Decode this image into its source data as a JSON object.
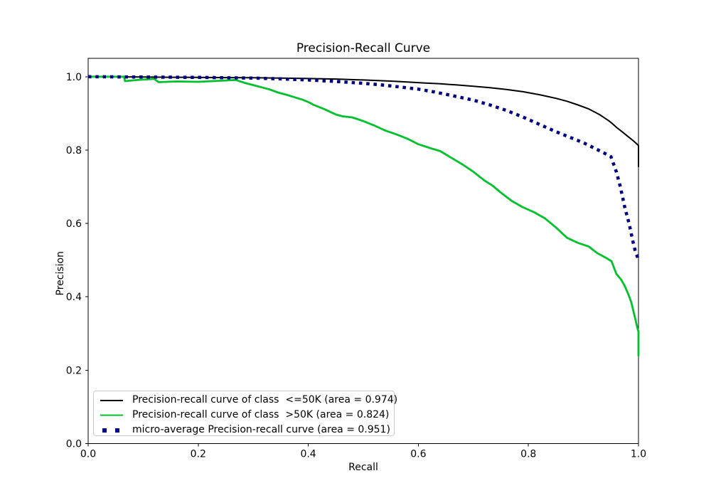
{
  "title": "Precision-Recall Curve",
  "axes": {
    "xlabel": "Recall",
    "ylabel": "Precision"
  },
  "legend": {
    "items": [
      {
        "label": "Precision-recall curve of class  <=50K (area = 0.974)"
      },
      {
        "label": "Precision-recall curve of class  >50K (area = 0.824)"
      },
      {
        "label": "micro-average Precision-recall curve (area = 0.951)"
      }
    ]
  },
  "chart_data": {
    "type": "line",
    "title": "Precision-Recall Curve",
    "xlabel": "Recall",
    "ylabel": "Precision",
    "xlim": [
      0.0,
      1.0
    ],
    "ylim": [
      0.0,
      1.05
    ],
    "x_ticks": [
      0.0,
      0.2,
      0.4,
      0.6,
      0.8,
      1.0
    ],
    "y_ticks": [
      0.0,
      0.2,
      0.4,
      0.6,
      0.8,
      1.0
    ],
    "grid": false,
    "legend_position": "lower left",
    "background": "#ffffff",
    "series": [
      {
        "name": "Precision-recall curve of class  <=50K (area = 0.974)",
        "area": 0.974,
        "color": "#000000",
        "linestyle": "solid",
        "linewidth": 2,
        "points": [
          [
            0.0,
            1.0
          ],
          [
            0.05,
            0.9995
          ],
          [
            0.1,
            0.999
          ],
          [
            0.15,
            0.9985
          ],
          [
            0.2,
            0.998
          ],
          [
            0.25,
            0.9975
          ],
          [
            0.3,
            0.997
          ],
          [
            0.35,
            0.996
          ],
          [
            0.4,
            0.995
          ],
          [
            0.45,
            0.9935
          ],
          [
            0.5,
            0.991
          ],
          [
            0.55,
            0.988
          ],
          [
            0.58,
            0.9855
          ],
          [
            0.61,
            0.983
          ],
          [
            0.64,
            0.9805
          ],
          [
            0.67,
            0.9775
          ],
          [
            0.7,
            0.974
          ],
          [
            0.73,
            0.97
          ],
          [
            0.76,
            0.965
          ],
          [
            0.79,
            0.959
          ],
          [
            0.82,
            0.951
          ],
          [
            0.85,
            0.941
          ],
          [
            0.87,
            0.933
          ],
          [
            0.89,
            0.923
          ],
          [
            0.91,
            0.912
          ],
          [
            0.93,
            0.896
          ],
          [
            0.945,
            0.881
          ],
          [
            0.951,
            0.874
          ],
          [
            0.96,
            0.862
          ],
          [
            0.97,
            0.85
          ],
          [
            0.98,
            0.838
          ],
          [
            0.99,
            0.826
          ],
          [
            0.996,
            0.818
          ],
          [
            1.0,
            0.812
          ],
          [
            1.0,
            0.755
          ]
        ]
      },
      {
        "name": "Precision-recall curve of class  >50K (area = 0.824)",
        "area": 0.824,
        "color": "#00c02e",
        "linestyle": "solid",
        "linewidth": 2.8,
        "points": [
          [
            0.0,
            1.0
          ],
          [
            0.065,
            1.0
          ],
          [
            0.067,
            0.988
          ],
          [
            0.09,
            0.991
          ],
          [
            0.12,
            0.994
          ],
          [
            0.128,
            0.985
          ],
          [
            0.16,
            0.987
          ],
          [
            0.2,
            0.986
          ],
          [
            0.24,
            0.989
          ],
          [
            0.268,
            0.991
          ],
          [
            0.285,
            0.983
          ],
          [
            0.3,
            0.977
          ],
          [
            0.315,
            0.971
          ],
          [
            0.33,
            0.965
          ],
          [
            0.345,
            0.957
          ],
          [
            0.36,
            0.951
          ],
          [
            0.375,
            0.944
          ],
          [
            0.39,
            0.937
          ],
          [
            0.4,
            0.931
          ],
          [
            0.41,
            0.923
          ],
          [
            0.42,
            0.917
          ],
          [
            0.43,
            0.911
          ],
          [
            0.44,
            0.904
          ],
          [
            0.45,
            0.897
          ],
          [
            0.462,
            0.892
          ],
          [
            0.48,
            0.889
          ],
          [
            0.5,
            0.879
          ],
          [
            0.52,
            0.867
          ],
          [
            0.54,
            0.853
          ],
          [
            0.56,
            0.843
          ],
          [
            0.58,
            0.831
          ],
          [
            0.6,
            0.816
          ],
          [
            0.62,
            0.806
          ],
          [
            0.64,
            0.797
          ],
          [
            0.66,
            0.779
          ],
          [
            0.68,
            0.761
          ],
          [
            0.7,
            0.741
          ],
          [
            0.72,
            0.717
          ],
          [
            0.735,
            0.703
          ],
          [
            0.75,
            0.684
          ],
          [
            0.77,
            0.661
          ],
          [
            0.79,
            0.644
          ],
          [
            0.81,
            0.631
          ],
          [
            0.83,
            0.614
          ],
          [
            0.85,
            0.589
          ],
          [
            0.87,
            0.561
          ],
          [
            0.89,
            0.547
          ],
          [
            0.91,
            0.537
          ],
          [
            0.925,
            0.519
          ],
          [
            0.94,
            0.507
          ],
          [
            0.951,
            0.497
          ],
          [
            0.96,
            0.462
          ],
          [
            0.968,
            0.448
          ],
          [
            0.975,
            0.43
          ],
          [
            0.982,
            0.405
          ],
          [
            0.987,
            0.385
          ],
          [
            0.991,
            0.36
          ],
          [
            0.995,
            0.335
          ],
          [
            0.998,
            0.315
          ],
          [
            1.0,
            0.305
          ],
          [
            1.0,
            0.24
          ]
        ]
      },
      {
        "name": "micro-average Precision-recall curve (area = 0.951)",
        "area": 0.951,
        "color": "#000080",
        "linestyle": "dotted",
        "linewidth": 4.5,
        "points": [
          [
            0.0,
            1.0
          ],
          [
            0.1,
            0.999
          ],
          [
            0.2,
            0.998
          ],
          [
            0.3,
            0.996
          ],
          [
            0.35,
            0.994
          ],
          [
            0.4,
            0.991
          ],
          [
            0.45,
            0.987
          ],
          [
            0.5,
            0.982
          ],
          [
            0.53,
            0.978
          ],
          [
            0.56,
            0.973
          ],
          [
            0.6,
            0.966
          ],
          [
            0.63,
            0.958
          ],
          [
            0.66,
            0.949
          ],
          [
            0.7,
            0.936
          ],
          [
            0.73,
            0.923
          ],
          [
            0.76,
            0.908
          ],
          [
            0.79,
            0.89
          ],
          [
            0.82,
            0.87
          ],
          [
            0.85,
            0.85
          ],
          [
            0.88,
            0.832
          ],
          [
            0.9,
            0.82
          ],
          [
            0.92,
            0.805
          ],
          [
            0.94,
            0.79
          ],
          [
            0.95,
            0.782
          ],
          [
            0.96,
            0.74
          ],
          [
            0.967,
            0.7
          ],
          [
            0.975,
            0.645
          ],
          [
            0.983,
            0.6
          ],
          [
            0.99,
            0.55
          ],
          [
            0.995,
            0.52
          ],
          [
            1.0,
            0.502
          ]
        ]
      }
    ]
  }
}
